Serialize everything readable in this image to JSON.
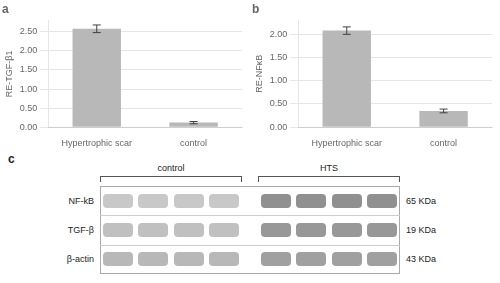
{
  "chart_data": [
    {
      "type": "bar",
      "title": "a",
      "categories": [
        "Hypertrophic scar",
        "control"
      ],
      "values": [
        2.58,
        0.12
      ],
      "errors": [
        0.1,
        0.03
      ],
      "y_label": "RE-TGF-β1",
      "color": "#b8b8b8",
      "ylim": [
        0,
        2.8
      ],
      "yticks": [
        {
          "value": 0,
          "label": "0.00"
        },
        {
          "value": 0.5,
          "label": "0.50"
        },
        {
          "value": 1,
          "label": "1.00"
        },
        {
          "value": 1.5,
          "label": "1.50"
        },
        {
          "value": 2,
          "label": "2.00"
        },
        {
          "value": 2.5,
          "label": "2.50"
        }
      ],
      "grid": "y"
    },
    {
      "type": "bar",
      "title": "b",
      "categories": [
        "Hypertrophic scar",
        "control"
      ],
      "values": [
        2.08,
        0.35
      ],
      "errors": [
        0.08,
        0.04
      ],
      "y_label": "RE-NFκB",
      "color": "#b8b8b8",
      "ylim": [
        0,
        2.3
      ],
      "yticks": [
        {
          "value": 0,
          "label": "0.00"
        },
        {
          "value": 0.5,
          "label": "0.50"
        },
        {
          "value": 1,
          "label": "1.00"
        },
        {
          "value": 1.5,
          "label": "1.50"
        },
        {
          "value": 2,
          "label": "2.00"
        }
      ],
      "grid": "y"
    },
    {
      "type": "blot",
      "title": "c",
      "categories": [
        "NF-kB",
        "TGF-β",
        "β-actin"
      ],
      "annotations": [
        "65 KDa",
        "19 KDa",
        "43 KDa"
      ],
      "series": [
        {
          "name": "control",
          "colors": [
            "#c8c8c8",
            "#c0c0c0",
            "#b8b8b8"
          ]
        },
        {
          "name": "HTS",
          "colors": [
            "#909090",
            "#989898",
            "#a0a0a0"
          ]
        }
      ]
    }
  ]
}
